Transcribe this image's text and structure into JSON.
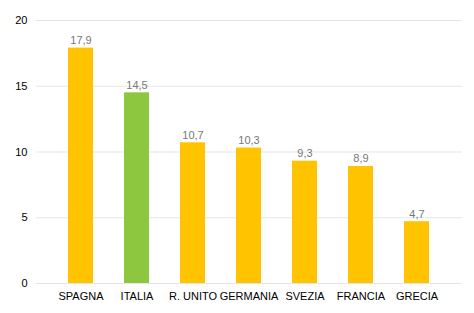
{
  "chart_data": {
    "type": "bar",
    "categories": [
      "SPAGNA",
      "ITALIA",
      "R. UNITO",
      "GERMANIA",
      "SVEZIA",
      "FRANCIA",
      "GRECIA"
    ],
    "values": [
      17.9,
      14.5,
      10.7,
      10.3,
      9.3,
      8.9,
      4.7
    ],
    "value_labels": [
      "17,9",
      "14,5",
      "10,7",
      "10,3",
      "9,3",
      "8,9",
      "4,7"
    ],
    "colors": [
      "#FFC300",
      "#8DC63F",
      "#FFC300",
      "#FFC300",
      "#FFC300",
      "#FFC300",
      "#FFC300"
    ],
    "ylim": [
      0,
      20
    ],
    "yticks": [
      0,
      5,
      10,
      15,
      20
    ],
    "grid": true,
    "data_labels": true
  }
}
